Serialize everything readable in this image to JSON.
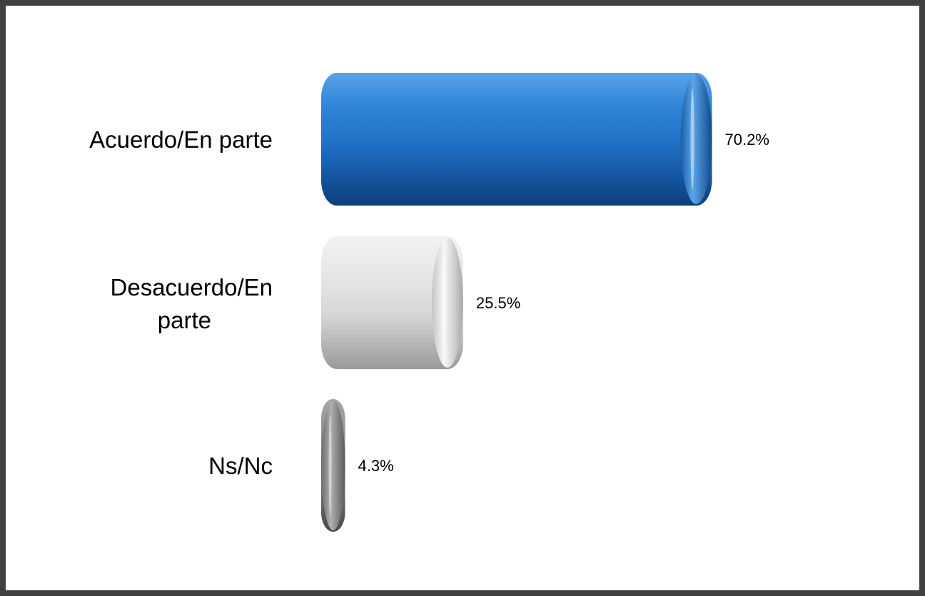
{
  "chart_data": {
    "type": "bar",
    "orientation": "horizontal",
    "categories": [
      "Acuerdo/En parte",
      "Desacuerdo/En parte",
      "Ns/Nc"
    ],
    "values": [
      70.2,
      25.5,
      4.3
    ],
    "value_labels": [
      "70.2%",
      "25.5%",
      "4.3%"
    ],
    "unit": "%",
    "xlim": [
      0,
      100
    ],
    "grid": false,
    "legend": "none",
    "title": "",
    "xlabel": "",
    "ylabel": "",
    "colors": [
      "#1f6fc5",
      "#d9d9d9",
      "#808080"
    ]
  }
}
